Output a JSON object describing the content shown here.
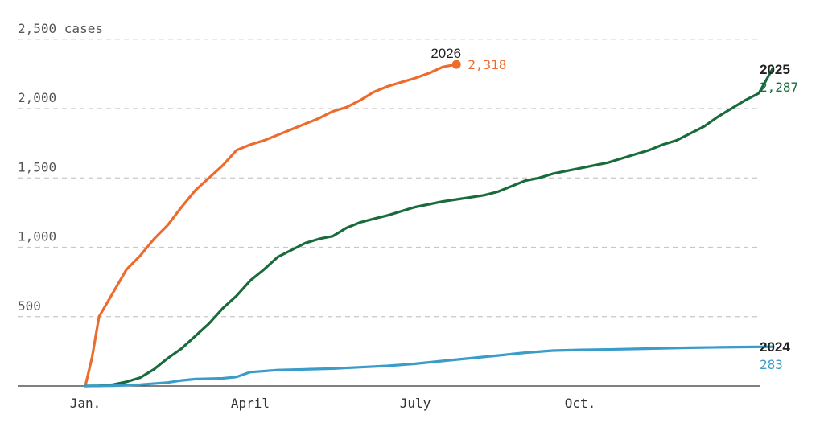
{
  "chart_data": {
    "type": "line",
    "xlabel": "",
    "ylabel": "",
    "ylim": [
      0,
      2500
    ],
    "xlim_months": [
      0,
      12
    ],
    "yticks": [
      {
        "value": 500,
        "label": "500"
      },
      {
        "value": 1000,
        "label": "1,000"
      },
      {
        "value": 1500,
        "label": "1,500"
      },
      {
        "value": 2000,
        "label": "2,000"
      },
      {
        "value": 2500,
        "label": "2,500 cases"
      }
    ],
    "xticks": [
      {
        "value": 0,
        "label": "Jan."
      },
      {
        "value": 3,
        "label": "April"
      },
      {
        "value": 6,
        "label": "July"
      },
      {
        "value": 9,
        "label": "Oct."
      }
    ],
    "grid": true,
    "series": [
      {
        "name": "2026",
        "color": "#ec6b2d",
        "end_label": "2,318",
        "end_marker": true,
        "points": [
          [
            0,
            0
          ],
          [
            0.12,
            200
          ],
          [
            0.25,
            500
          ],
          [
            0.5,
            670
          ],
          [
            0.75,
            840
          ],
          [
            1.0,
            940
          ],
          [
            1.25,
            1060
          ],
          [
            1.5,
            1160
          ],
          [
            1.75,
            1290
          ],
          [
            2.0,
            1410
          ],
          [
            2.25,
            1500
          ],
          [
            2.5,
            1590
          ],
          [
            2.75,
            1700
          ],
          [
            3.0,
            1740
          ],
          [
            3.25,
            1770
          ],
          [
            3.5,
            1810
          ],
          [
            3.75,
            1850
          ],
          [
            4.0,
            1890
          ],
          [
            4.25,
            1930
          ],
          [
            4.5,
            1980
          ],
          [
            4.75,
            2010
          ],
          [
            5.0,
            2060
          ],
          [
            5.25,
            2120
          ],
          [
            5.5,
            2160
          ],
          [
            5.75,
            2190
          ],
          [
            6.0,
            2220
          ],
          [
            6.25,
            2255
          ],
          [
            6.5,
            2300
          ],
          [
            6.75,
            2318
          ]
        ]
      },
      {
        "name": "2025",
        "color": "#1a6b3c",
        "end_label": "2,287",
        "end_marker": false,
        "points": [
          [
            0,
            0
          ],
          [
            0.25,
            2
          ],
          [
            0.5,
            10
          ],
          [
            0.75,
            30
          ],
          [
            1.0,
            60
          ],
          [
            1.25,
            120
          ],
          [
            1.5,
            200
          ],
          [
            1.75,
            270
          ],
          [
            2.0,
            360
          ],
          [
            2.25,
            450
          ],
          [
            2.5,
            560
          ],
          [
            2.75,
            650
          ],
          [
            3.0,
            760
          ],
          [
            3.25,
            840
          ],
          [
            3.5,
            930
          ],
          [
            3.75,
            980
          ],
          [
            4.0,
            1030
          ],
          [
            4.25,
            1060
          ],
          [
            4.5,
            1080
          ],
          [
            4.75,
            1140
          ],
          [
            5.0,
            1180
          ],
          [
            5.25,
            1205
          ],
          [
            5.5,
            1230
          ],
          [
            5.75,
            1260
          ],
          [
            6.0,
            1290
          ],
          [
            6.25,
            1310
          ],
          [
            6.5,
            1330
          ],
          [
            6.75,
            1345
          ],
          [
            7.0,
            1360
          ],
          [
            7.25,
            1375
          ],
          [
            7.5,
            1400
          ],
          [
            7.75,
            1440
          ],
          [
            8.0,
            1480
          ],
          [
            8.25,
            1500
          ],
          [
            8.5,
            1530
          ],
          [
            8.75,
            1550
          ],
          [
            9.0,
            1570
          ],
          [
            9.25,
            1590
          ],
          [
            9.5,
            1610
          ],
          [
            9.75,
            1640
          ],
          [
            10.0,
            1670
          ],
          [
            10.25,
            1700
          ],
          [
            10.5,
            1740
          ],
          [
            10.75,
            1770
          ],
          [
            11.0,
            1820
          ],
          [
            11.25,
            1870
          ],
          [
            11.5,
            1940
          ],
          [
            11.75,
            2000
          ],
          [
            12.0,
            2060
          ],
          [
            12.25,
            2110
          ],
          [
            12.5,
            2287
          ]
        ]
      },
      {
        "name": "2024",
        "color": "#3a9cc9",
        "end_label": "283",
        "end_marker": false,
        "points": [
          [
            0,
            0
          ],
          [
            0.5,
            2
          ],
          [
            1.0,
            10
          ],
          [
            1.5,
            25
          ],
          [
            1.75,
            40
          ],
          [
            2.0,
            50
          ],
          [
            2.5,
            55
          ],
          [
            2.75,
            65
          ],
          [
            3.0,
            100
          ],
          [
            3.5,
            115
          ],
          [
            4.0,
            120
          ],
          [
            4.5,
            125
          ],
          [
            5.0,
            135
          ],
          [
            5.5,
            145
          ],
          [
            6.0,
            160
          ],
          [
            6.5,
            180
          ],
          [
            7.0,
            200
          ],
          [
            7.5,
            220
          ],
          [
            8.0,
            240
          ],
          [
            8.5,
            255
          ],
          [
            9.0,
            260
          ],
          [
            9.5,
            263
          ],
          [
            10.0,
            267
          ],
          [
            10.5,
            272
          ],
          [
            11.0,
            276
          ],
          [
            11.5,
            279
          ],
          [
            12.0,
            281
          ],
          [
            12.5,
            283
          ]
        ]
      }
    ]
  }
}
